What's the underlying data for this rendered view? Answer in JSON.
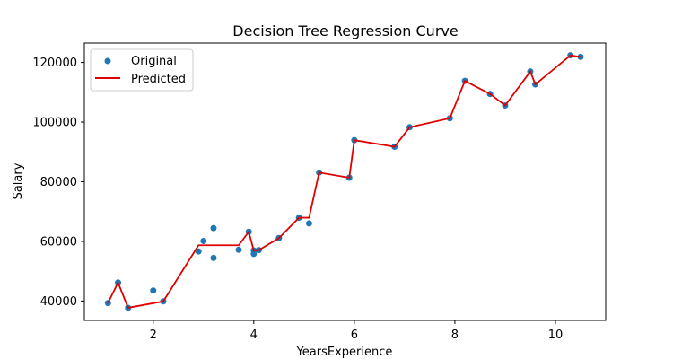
{
  "chart_data": {
    "type": "scatter",
    "title": "Decision Tree Regression Curve",
    "xlabel": "YearsExperience",
    "ylabel": "Salary",
    "xlim": [
      0.63,
      11.0
    ],
    "ylim": [
      33500,
      126500
    ],
    "xticks": [
      2,
      4,
      6,
      8,
      10
    ],
    "yticks": [
      40000,
      60000,
      80000,
      100000,
      120000
    ],
    "xtick_labels": [
      "2",
      "4",
      "6",
      "8",
      "10"
    ],
    "ytick_labels": [
      "40000",
      "60000",
      "80000",
      "100000",
      "120000"
    ],
    "legend_position": "upper left",
    "grid": false,
    "colors": {
      "original": "#1f77b4",
      "predicted": "#e00000"
    },
    "series": [
      {
        "name": "Original",
        "kind": "scatter",
        "x": [
          1.1,
          1.3,
          1.5,
          2.0,
          2.2,
          2.9,
          3.0,
          3.2,
          3.2,
          3.7,
          3.9,
          4.0,
          4.0,
          4.1,
          4.5,
          4.9,
          5.1,
          5.3,
          5.9,
          6.0,
          6.8,
          7.1,
          7.9,
          8.2,
          8.7,
          9.0,
          9.5,
          9.6,
          10.3,
          10.5
        ],
        "y": [
          39343,
          46205,
          37731,
          43525,
          39891,
          56642,
          60150,
          54445,
          64445,
          57189,
          63218,
          55794,
          56957,
          57081,
          61111,
          67938,
          66029,
          83088,
          81363,
          93940,
          91738,
          98273,
          101302,
          113812,
          109431,
          105582,
          116969,
          112635,
          122391,
          121872
        ]
      },
      {
        "name": "Predicted",
        "kind": "line",
        "x": [
          1.1,
          1.3,
          1.5,
          2.2,
          2.9,
          3.7,
          3.9,
          4.0,
          4.1,
          4.5,
          4.9,
          5.1,
          5.3,
          5.9,
          6.0,
          6.8,
          7.1,
          7.9,
          8.2,
          8.7,
          9.0,
          9.5,
          9.6,
          10.3,
          10.5
        ],
        "y": [
          39343,
          46205,
          37731,
          39891,
          58700,
          58700,
          63218,
          56900,
          57081,
          61111,
          67938,
          67938,
          83088,
          81363,
          93940,
          91738,
          98273,
          101302,
          113812,
          109431,
          105582,
          116969,
          112635,
          122391,
          121872
        ]
      }
    ]
  }
}
